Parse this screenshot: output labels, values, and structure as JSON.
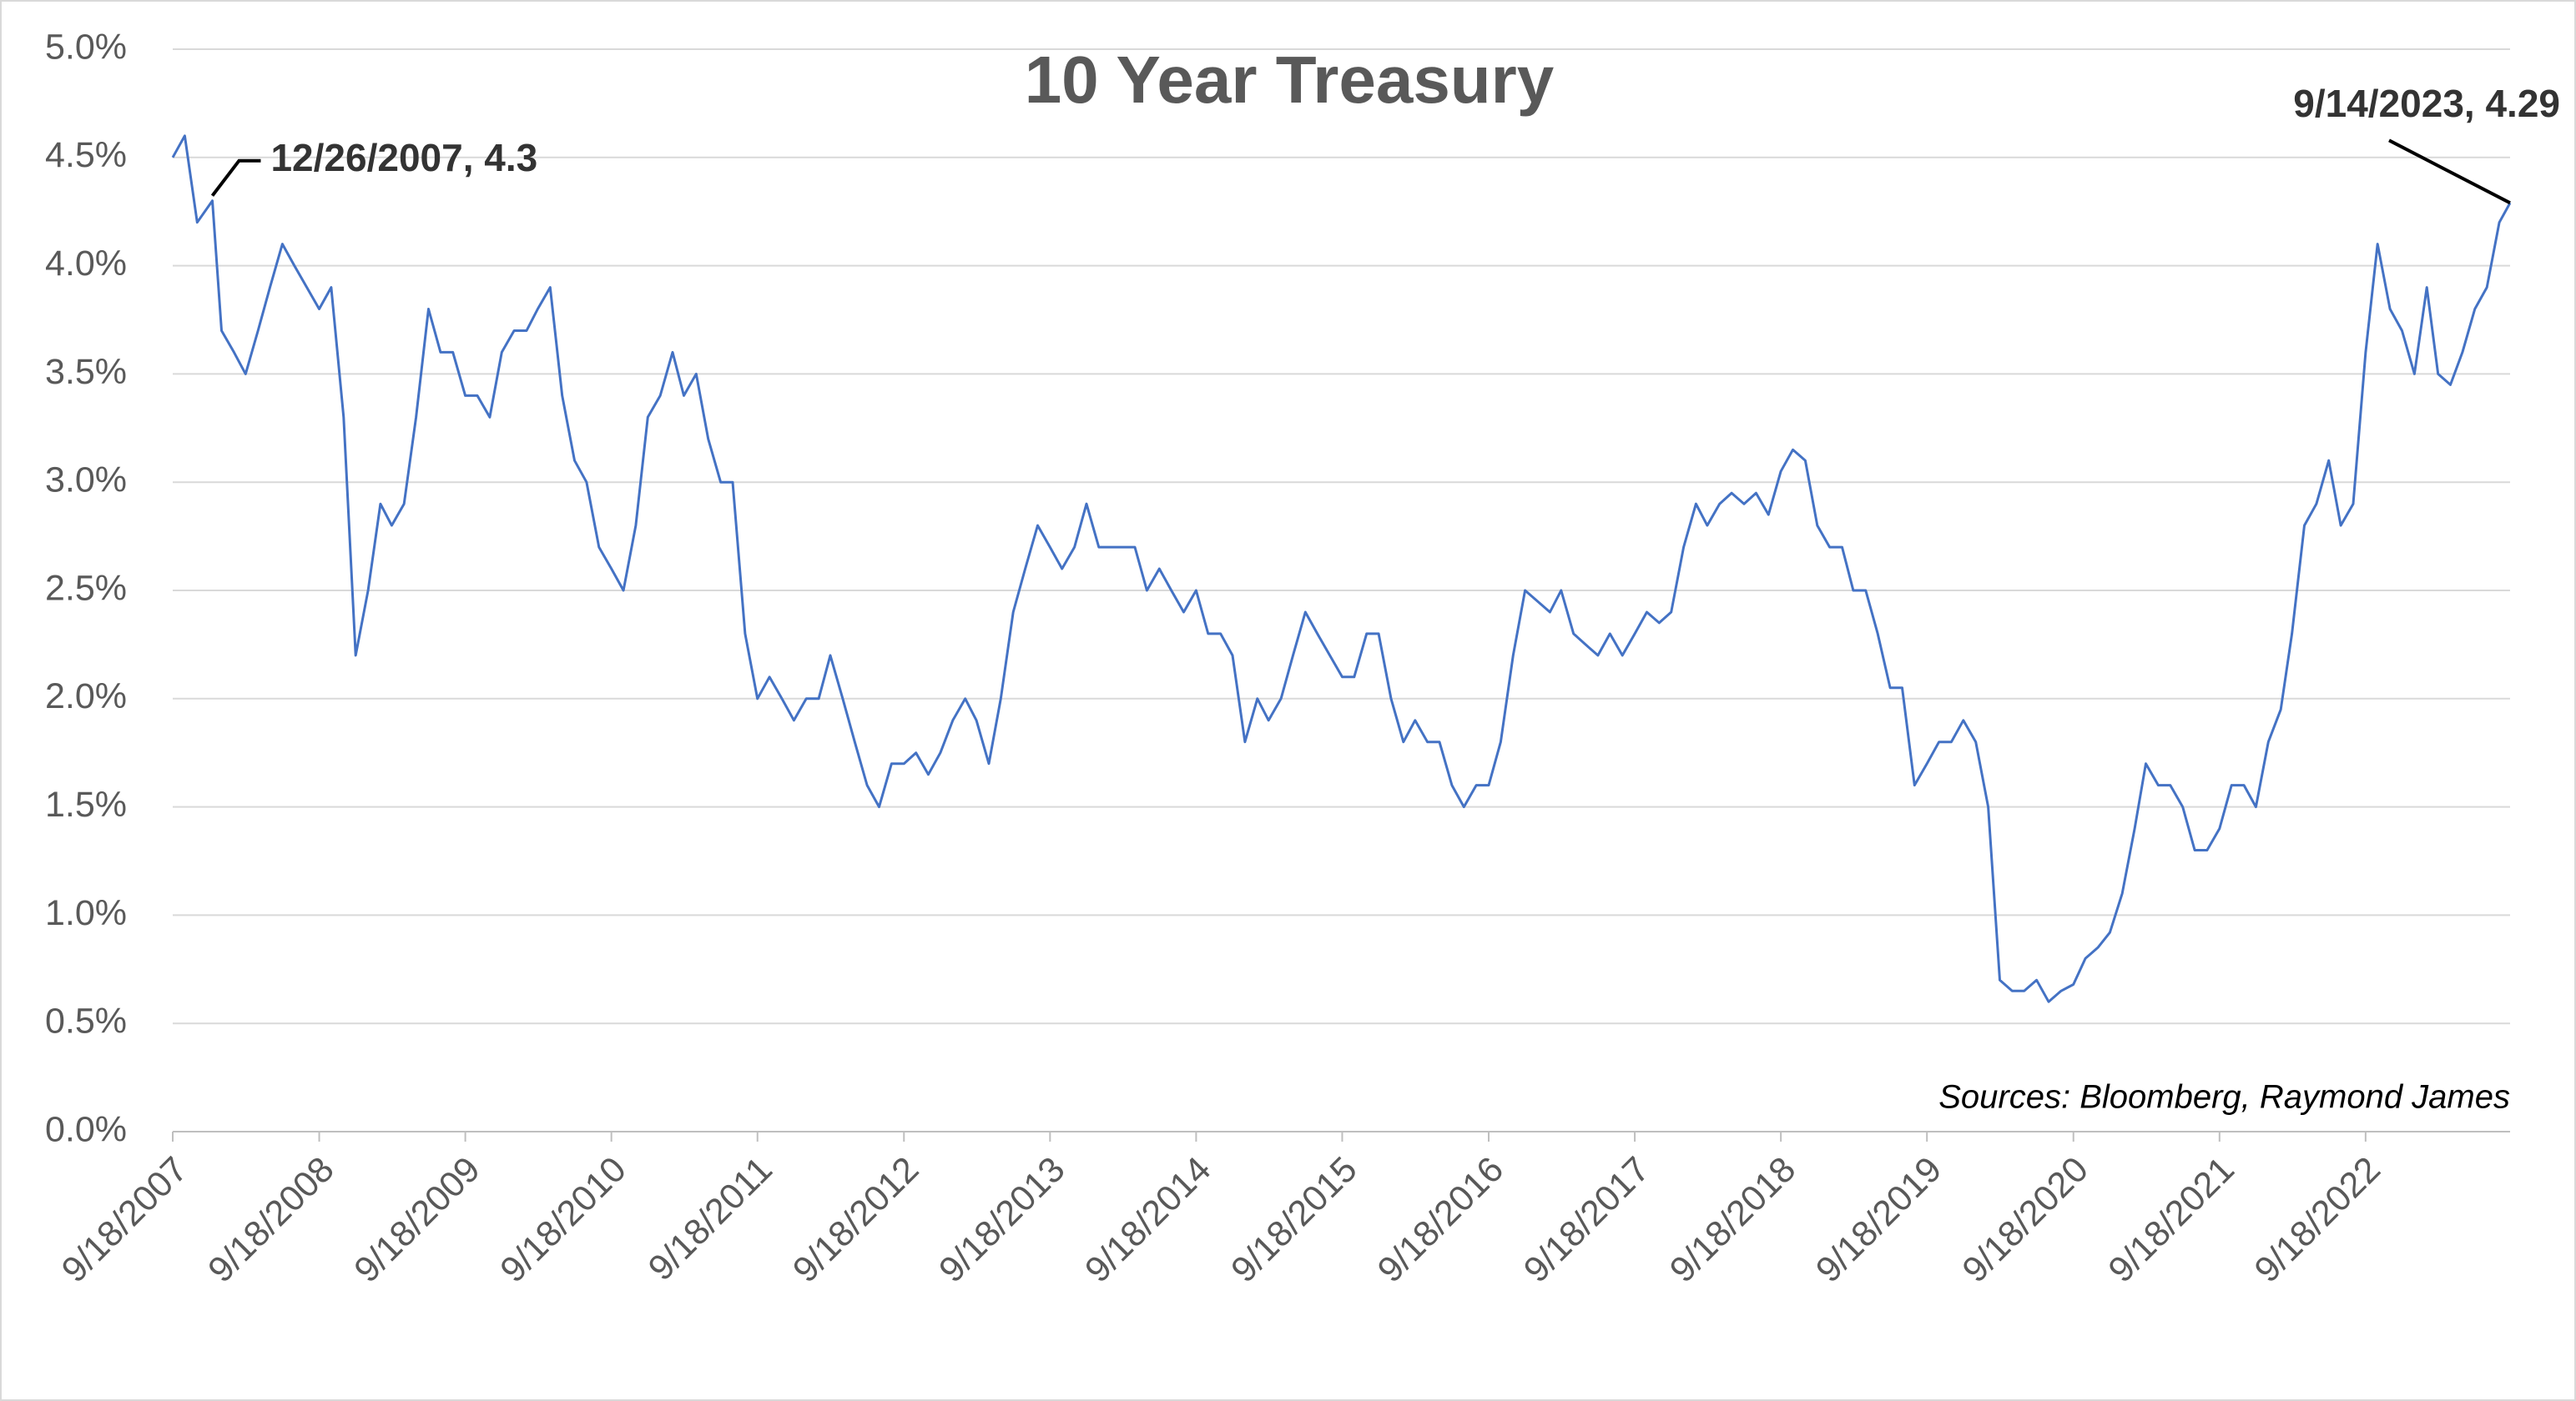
{
  "chart_data": {
    "type": "line",
    "title": "10 Year Treasury",
    "source": "Sources: Bloomberg, Raymond James",
    "annotations": [
      {
        "text": "12/26/2007, 4.3",
        "x": "12/26/2007",
        "y": 4.3
      },
      {
        "text": "9/14/2023, 4.29",
        "x": "9/14/2023",
        "y": 4.29
      }
    ],
    "xlim": [
      "9/18/2007",
      "9/14/2023"
    ],
    "xticks": [
      "9/18/2007",
      "9/18/2008",
      "9/18/2009",
      "9/18/2010",
      "9/18/2011",
      "9/18/2012",
      "9/18/2013",
      "9/18/2014",
      "9/18/2015",
      "9/18/2016",
      "9/18/2017",
      "9/18/2018",
      "9/18/2019",
      "9/18/2020",
      "9/18/2021",
      "9/18/2022"
    ],
    "ylim": [
      0,
      5
    ],
    "yticks": [
      {
        "value": 0,
        "label": "0.0%"
      },
      {
        "value": 0.5,
        "label": "0.5%"
      },
      {
        "value": 1,
        "label": "1.0%"
      },
      {
        "value": 1.5,
        "label": "1.5%"
      },
      {
        "value": 2,
        "label": "2.0%"
      },
      {
        "value": 2.5,
        "label": "2.5%"
      },
      {
        "value": 3,
        "label": "3.0%"
      },
      {
        "value": 3.5,
        "label": "3.5%"
      },
      {
        "value": 4,
        "label": "4.0%"
      },
      {
        "value": 4.5,
        "label": "4.5%"
      },
      {
        "value": 5,
        "label": "5.0%"
      }
    ],
    "grid": true,
    "x": [
      "9/18/2007",
      "10/18/2007",
      "11/18/2007",
      "12/26/2007",
      "1/18/2008",
      "2/18/2008",
      "3/18/2008",
      "4/18/2008",
      "5/18/2008",
      "6/18/2008",
      "7/18/2008",
      "8/18/2008",
      "9/18/2008",
      "10/18/2008",
      "11/18/2008",
      "12/18/2008",
      "1/18/2009",
      "2/18/2009",
      "3/18/2009",
      "4/18/2009",
      "5/18/2009",
      "6/18/2009",
      "7/18/2009",
      "8/18/2009",
      "9/18/2009",
      "10/18/2009",
      "11/18/2009",
      "12/18/2009",
      "1/18/2010",
      "2/18/2010",
      "3/18/2010",
      "4/18/2010",
      "5/18/2010",
      "6/18/2010",
      "7/18/2010",
      "8/18/2010",
      "9/18/2010",
      "10/18/2010",
      "11/18/2010",
      "12/18/2010",
      "1/18/2011",
      "2/18/2011",
      "3/18/2011",
      "4/18/2011",
      "5/18/2011",
      "6/18/2011",
      "7/18/2011",
      "8/18/2011",
      "9/18/2011",
      "10/18/2011",
      "11/18/2011",
      "12/18/2011",
      "1/18/2012",
      "2/18/2012",
      "3/18/2012",
      "4/18/2012",
      "5/18/2012",
      "6/18/2012",
      "7/18/2012",
      "8/18/2012",
      "9/18/2012",
      "10/18/2012",
      "11/18/2012",
      "12/18/2012",
      "1/18/2013",
      "2/18/2013",
      "3/18/2013",
      "4/18/2013",
      "5/18/2013",
      "6/18/2013",
      "7/18/2013",
      "8/18/2013",
      "9/18/2013",
      "10/18/2013",
      "11/18/2013",
      "12/18/2013",
      "1/18/2014",
      "2/18/2014",
      "3/18/2014",
      "4/18/2014",
      "5/18/2014",
      "6/18/2014",
      "7/18/2014",
      "8/18/2014",
      "9/18/2014",
      "10/18/2014",
      "11/18/2014",
      "12/18/2014",
      "1/18/2015",
      "2/18/2015",
      "3/18/2015",
      "4/18/2015",
      "5/18/2015",
      "6/18/2015",
      "7/18/2015",
      "8/18/2015",
      "9/18/2015",
      "10/18/2015",
      "11/18/2015",
      "12/18/2015",
      "1/18/2016",
      "2/18/2016",
      "3/18/2016",
      "4/18/2016",
      "5/18/2016",
      "6/18/2016",
      "7/18/2016",
      "8/18/2016",
      "9/18/2016",
      "10/18/2016",
      "11/18/2016",
      "12/18/2016",
      "1/18/2017",
      "2/18/2017",
      "3/18/2017",
      "4/18/2017",
      "5/18/2017",
      "6/18/2017",
      "7/18/2017",
      "8/18/2017",
      "9/18/2017",
      "10/18/2017",
      "11/18/2017",
      "12/18/2017",
      "1/18/2018",
      "2/18/2018",
      "3/18/2018",
      "4/18/2018",
      "5/18/2018",
      "6/18/2018",
      "7/18/2018",
      "8/18/2018",
      "9/18/2018",
      "10/18/2018",
      "11/18/2018",
      "12/18/2018",
      "1/18/2019",
      "2/18/2019",
      "3/18/2019",
      "4/18/2019",
      "5/18/2019",
      "6/18/2019",
      "7/18/2019",
      "8/18/2019",
      "9/18/2019",
      "10/18/2019",
      "11/18/2019",
      "12/18/2019",
      "1/18/2020",
      "2/18/2020",
      "3/18/2020",
      "4/18/2020",
      "5/18/2020",
      "6/18/2020",
      "7/18/2020",
      "8/18/2020",
      "9/18/2020",
      "10/18/2020",
      "11/18/2020",
      "12/18/2020",
      "1/18/2021",
      "2/18/2021",
      "3/18/2021",
      "4/18/2021",
      "5/18/2021",
      "6/18/2021",
      "7/18/2021",
      "8/18/2021",
      "9/18/2021",
      "10/18/2021",
      "11/18/2021",
      "12/18/2021",
      "1/18/2022",
      "2/18/2022",
      "3/18/2022",
      "4/18/2022",
      "5/18/2022",
      "6/18/2022",
      "7/18/2022",
      "8/18/2022",
      "9/18/2022",
      "10/18/2022",
      "11/18/2022",
      "12/18/2022",
      "1/18/2023",
      "2/18/2023",
      "3/18/2023",
      "4/18/2023",
      "5/18/2023",
      "6/18/2023",
      "7/18/2023",
      "8/18/2023",
      "9/14/2023"
    ],
    "series": [
      {
        "name": "10 Year Treasury",
        "color": "#4472c4",
        "values": [
          4.5,
          4.6,
          4.2,
          4.3,
          3.7,
          3.6,
          3.5,
          3.7,
          3.9,
          4.1,
          4.0,
          3.9,
          3.8,
          3.9,
          3.3,
          2.2,
          2.5,
          2.9,
          2.8,
          2.9,
          3.3,
          3.8,
          3.6,
          3.6,
          3.4,
          3.4,
          3.3,
          3.6,
          3.7,
          3.7,
          3.8,
          3.9,
          3.4,
          3.1,
          3.0,
          2.7,
          2.6,
          2.5,
          2.8,
          3.3,
          3.4,
          3.6,
          3.4,
          3.5,
          3.2,
          3.0,
          3.0,
          2.3,
          2.0,
          2.1,
          2.0,
          1.9,
          2.0,
          2.0,
          2.2,
          2.0,
          1.8,
          1.6,
          1.5,
          1.7,
          1.7,
          1.75,
          1.65,
          1.75,
          1.9,
          2.0,
          1.9,
          1.7,
          2.0,
          2.4,
          2.6,
          2.8,
          2.7,
          2.6,
          2.7,
          2.9,
          2.7,
          2.7,
          2.7,
          2.7,
          2.5,
          2.6,
          2.5,
          2.4,
          2.5,
          2.3,
          2.3,
          2.2,
          1.8,
          2.0,
          1.9,
          2.0,
          2.2,
          2.4,
          2.3,
          2.2,
          2.1,
          2.1,
          2.3,
          2.3,
          2.0,
          1.8,
          1.9,
          1.8,
          1.8,
          1.6,
          1.5,
          1.6,
          1.6,
          1.8,
          2.2,
          2.5,
          2.45,
          2.4,
          2.5,
          2.3,
          2.25,
          2.2,
          2.3,
          2.2,
          2.3,
          2.4,
          2.35,
          2.4,
          2.7,
          2.9,
          2.8,
          2.9,
          2.95,
          2.9,
          2.95,
          2.85,
          3.05,
          3.15,
          3.1,
          2.8,
          2.7,
          2.7,
          2.5,
          2.5,
          2.3,
          2.05,
          2.05,
          1.6,
          1.7,
          1.8,
          1.8,
          1.9,
          1.8,
          1.5,
          0.7,
          0.65,
          0.65,
          0.7,
          0.6,
          0.65,
          0.68,
          0.8,
          0.85,
          0.92,
          1.1,
          1.4,
          1.7,
          1.6,
          1.6,
          1.5,
          1.3,
          1.3,
          1.4,
          1.6,
          1.6,
          1.5,
          1.8,
          1.95,
          2.3,
          2.8,
          2.9,
          3.1,
          2.8,
          2.9,
          3.6,
          4.1,
          3.8,
          3.7,
          3.5,
          3.9,
          3.5,
          3.45,
          3.6,
          3.8,
          3.9,
          4.2,
          4.29
        ]
      }
    ]
  }
}
